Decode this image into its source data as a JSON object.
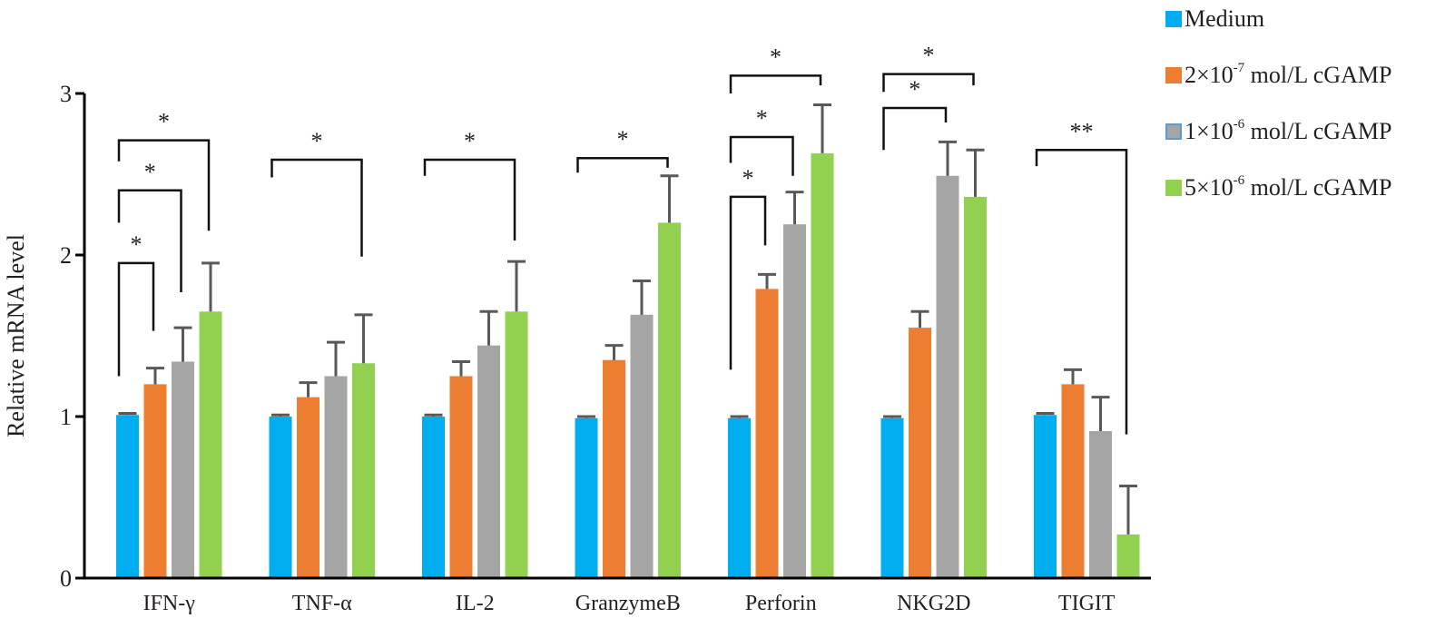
{
  "chart_data": {
    "type": "bar",
    "title": "",
    "xlabel": "",
    "ylabel": "Relative mRNA level",
    "ylim": [
      0,
      3
    ],
    "yticks": [
      0,
      1,
      2,
      3
    ],
    "grid": false,
    "legend_position": "top-right",
    "categories": [
      "IFN-γ",
      "TNF-α",
      "IL-2",
      "GranzymeB",
      "Perforin",
      "NKG2D",
      "TIGIT"
    ],
    "series": [
      {
        "name": "Medium",
        "label_parts": {
          "base": "Medium",
          "exp": "",
          "tail": ""
        },
        "color": "#00aeef",
        "values": [
          1.01,
          1.0,
          1.0,
          0.99,
          0.99,
          0.99,
          1.01
        ],
        "errors": [
          0.01,
          0.01,
          0.01,
          0.01,
          0.01,
          0.01,
          0.01
        ]
      },
      {
        "name": "2×10-7 mol/L cGAMP",
        "label_parts": {
          "base": "2×10",
          "exp": "-7",
          "tail": " mol/L cGAMP"
        },
        "color": "#ed7d31",
        "values": [
          1.2,
          1.12,
          1.25,
          1.35,
          1.79,
          1.55,
          1.2
        ],
        "errors": [
          0.1,
          0.09,
          0.09,
          0.09,
          0.09,
          0.1,
          0.09
        ]
      },
      {
        "name": "1×10-6 mol/L cGAMP",
        "label_parts": {
          "base": "1×10",
          "exp": "-6",
          "tail": " mol/L cGAMP"
        },
        "color": "#a5a5a5",
        "border": "#5b9bd5",
        "values": [
          1.34,
          1.25,
          1.44,
          1.63,
          2.19,
          2.49,
          0.91
        ],
        "errors": [
          0.21,
          0.21,
          0.21,
          0.21,
          0.2,
          0.21,
          0.21
        ]
      },
      {
        "name": "5×10-6 mol/L cGAMP",
        "label_parts": {
          "base": "5×10",
          "exp": "-6",
          "tail": " mol/L cGAMP"
        },
        "color": "#92d050",
        "values": [
          1.65,
          1.33,
          1.65,
          2.2,
          2.63,
          2.36,
          0.27
        ],
        "errors": [
          0.3,
          0.3,
          0.31,
          0.29,
          0.3,
          0.29,
          0.3
        ]
      }
    ],
    "error_bar_color": "#595959",
    "significance": [
      {
        "category": 0,
        "from": 0,
        "to": 1,
        "label": "*",
        "level": 1.95,
        "left_end": 1.25,
        "right_end": 1.53
      },
      {
        "category": 0,
        "from": 0,
        "to": 2,
        "label": "*",
        "level": 2.4,
        "left_end": 2.2,
        "right_end": 1.77
      },
      {
        "category": 0,
        "from": 0,
        "to": 3,
        "label": "*",
        "level": 2.71,
        "left_end": 2.58,
        "right_end": 2.15
      },
      {
        "category": 1,
        "from": 0,
        "to": 3,
        "label": "*",
        "level": 2.59,
        "left_end": 2.48,
        "right_end": 1.99
      },
      {
        "category": 2,
        "from": 0,
        "to": 3,
        "label": "*",
        "level": 2.59,
        "left_end": 2.49,
        "right_end": 2.09
      },
      {
        "category": 3,
        "from": 0,
        "to": 3,
        "label": "*",
        "level": 2.6,
        "left_end": 2.51,
        "right_end": 2.54
      },
      {
        "category": 4,
        "from": 0,
        "to": 1,
        "label": "*",
        "level": 2.36,
        "left_end": 1.29,
        "right_end": 2.06
      },
      {
        "category": 4,
        "from": 0,
        "to": 2,
        "label": "*",
        "level": 2.73,
        "left_end": 2.57,
        "right_end": 2.49
      },
      {
        "category": 4,
        "from": 0,
        "to": 3,
        "label": "*",
        "level": 3.11,
        "left_end": 3.0,
        "right_end": 3.05
      },
      {
        "category": 5,
        "from": 0,
        "to": 2,
        "label": "*",
        "level": 2.91,
        "left_end": 2.65,
        "right_end": 2.82
      },
      {
        "category": 5,
        "from": 0,
        "to": 3,
        "label": "*",
        "level": 3.12,
        "left_end": 3.01,
        "right_end": 3.05
      },
      {
        "category": 6,
        "from": 0,
        "to": 3,
        "label": "**",
        "level": 2.65,
        "left_end": 2.55,
        "right_end": 0.89
      }
    ]
  }
}
